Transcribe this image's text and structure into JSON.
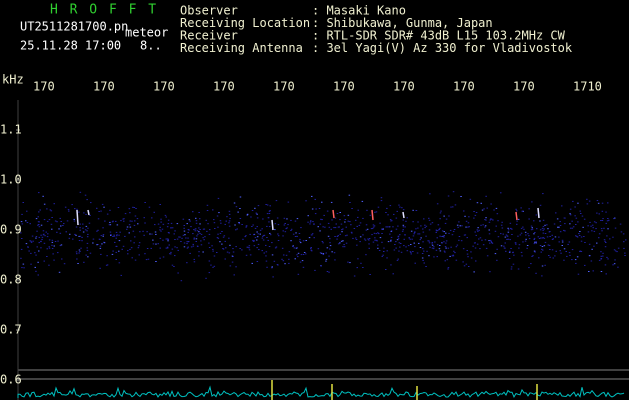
{
  "app": {
    "title": "H R O F F T",
    "file": "UT2511281700.pn",
    "mode": "meteor",
    "datetime": "25.11.28 17:00",
    "count": "8.."
  },
  "header": {
    "rows": [
      {
        "label": "Observer",
        "value": ": Masaki Kano"
      },
      {
        "label": "Receiving Location",
        "value": ": Shibukawa, Gunma, Japan"
      },
      {
        "label": "Receiver",
        "value": ": RTL-SDR SDR# 43dB L15 103.2MHz CW"
      },
      {
        "label": "Receiving Antenna",
        "value": ": 3el Yagi(V) Az 330 for Vladivostok"
      }
    ]
  },
  "axes": {
    "y_unit": "kHz",
    "y_labels": [
      "1.1",
      "1.0",
      "0.9",
      "0.8",
      "0.7",
      "0.6"
    ],
    "x_labels": [
      "170",
      "170",
      "170",
      "170",
      "170",
      "170",
      "170",
      "170",
      "170",
      "1710"
    ]
  }
}
